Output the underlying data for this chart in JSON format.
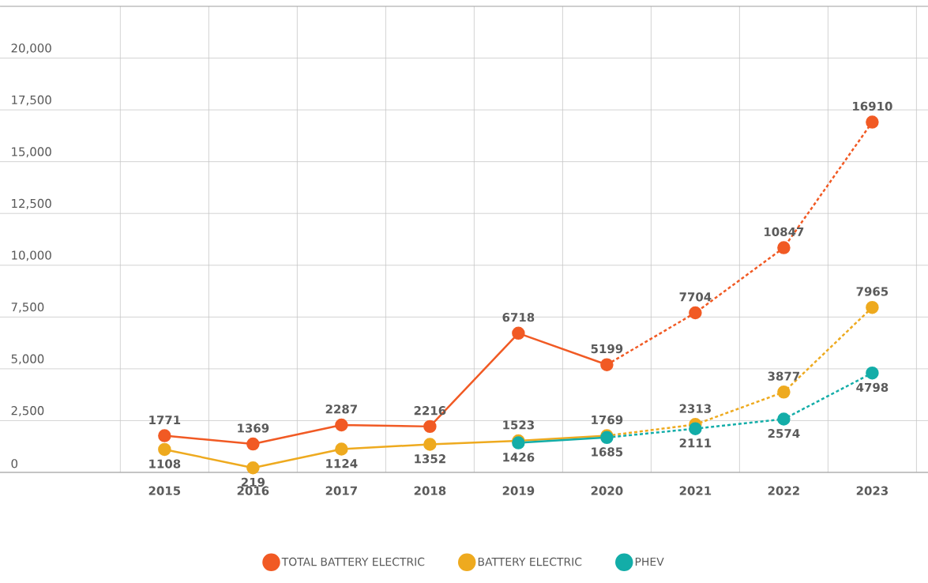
{
  "chart_data": {
    "type": "line",
    "categories": [
      "2015",
      "2016",
      "2017",
      "2018",
      "2019",
      "2020",
      "2021",
      "2022",
      "2023"
    ],
    "series": [
      {
        "name": "TOTAL BATTERY ELECTRIC",
        "color": "#f15a24",
        "line_style": "solid",
        "values": [
          1771,
          1369,
          2287,
          2216,
          6718,
          5199,
          null,
          null,
          null
        ]
      },
      {
        "color": "#f15a24",
        "line_style": "dashed",
        "values": [
          null,
          null,
          null,
          null,
          null,
          5199,
          7704,
          10847,
          16910
        ],
        "value_labels": [
          null,
          null,
          null,
          null,
          null,
          null,
          "7704",
          "10847",
          "16910"
        ]
      },
      {
        "name": "BATTERY ELECTRIC",
        "color": "#eeaa1f",
        "line_style": "solid",
        "values": [
          1108,
          219,
          1124,
          1352,
          1523,
          1769,
          null,
          null,
          null
        ]
      },
      {
        "color": "#eeaa1f",
        "line_style": "dashed",
        "values": [
          null,
          null,
          null,
          null,
          null,
          1769,
          2313,
          3877,
          7965
        ],
        "value_labels": [
          null,
          null,
          null,
          null,
          null,
          null,
          "2313",
          "3877",
          "7965"
        ]
      },
      {
        "name": "PHEV",
        "color": "#13ada8",
        "line_style": "solid",
        "values": [
          null,
          null,
          null,
          null,
          1426,
          1685,
          null,
          null,
          null
        ]
      },
      {
        "color": "#13ada8",
        "line_style": "dashed",
        "values": [
          null,
          null,
          null,
          null,
          null,
          1685,
          2111,
          2574,
          4798
        ],
        "value_labels": [
          null,
          null,
          null,
          null,
          null,
          null,
          "2111",
          "2574",
          "4798"
        ]
      }
    ],
    "ylim": [
      0,
      22500
    ],
    "yticks": [
      0,
      {
        "value": 2500,
        "label": "2,500"
      },
      {
        "value": 5000,
        "label": "5,000"
      },
      {
        "value": 7500,
        "label": "7,500"
      },
      {
        "value": 10000,
        "label": "10,000"
      },
      {
        "value": 12500,
        "label": "12,500"
      },
      {
        "value": 15000,
        "label": "15,000"
      },
      {
        "value": 17500,
        "label": "17,500"
      },
      {
        "value": 20000,
        "label": "20,000"
      }
    ],
    "grid": true,
    "marker": "circle",
    "data_labels": true,
    "legend": "bottom"
  }
}
